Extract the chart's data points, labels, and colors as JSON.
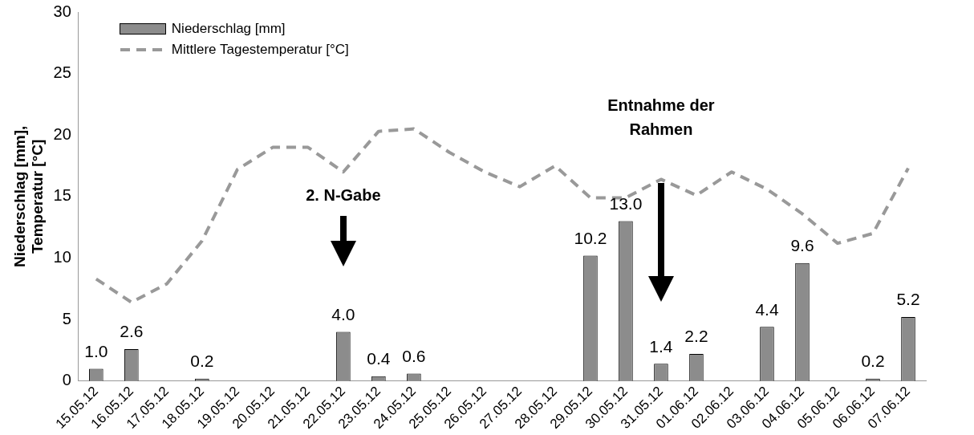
{
  "chart_data": {
    "type": "bar",
    "ylabel": "Niederschlag [mm],\nTemperatur [°C]",
    "categories": [
      "15.05.12",
      "16.05.12",
      "17.05.12",
      "18.05.12",
      "19.05.12",
      "20.05.12",
      "21.05.12",
      "22.05.12",
      "23.05.12",
      "24.05.12",
      "25.05.12",
      "26.05.12",
      "27.05.12",
      "28.05.12",
      "29.05.12",
      "30.05.12",
      "31.05.12",
      "01.06.12",
      "02.06.12",
      "03.06.12",
      "04.06.12",
      "05.06.12",
      "06.06.12",
      "07.06.12"
    ],
    "series": [
      {
        "name": "Niederschlag [mm]",
        "color": "#8c8c8c",
        "values": [
          1.0,
          2.6,
          null,
          0.2,
          null,
          null,
          null,
          4.0,
          0.4,
          0.6,
          null,
          null,
          null,
          null,
          10.2,
          13.0,
          1.4,
          2.2,
          null,
          4.4,
          9.6,
          null,
          0.2,
          5.2
        ],
        "value_labels": [
          "1.0",
          "2.6",
          null,
          "0.2",
          null,
          null,
          null,
          "4.0",
          "0.4",
          "0.6",
          null,
          null,
          null,
          null,
          "10.2",
          "13.0",
          "1.4",
          "2.2",
          null,
          "4.4",
          "9.6",
          null,
          "0.2",
          "5.2"
        ]
      },
      {
        "name": "Mittlere Tagestemperatur [°C]",
        "type": "line",
        "color": "#999999",
        "line_style": "dashed",
        "marker": "none",
        "values": [
          8.3,
          6.4,
          7.9,
          11.4,
          17.2,
          19.0,
          19.0,
          17.0,
          20.3,
          20.5,
          18.6,
          17.0,
          15.8,
          17.5,
          14.9,
          14.9,
          16.4,
          15.1,
          17.0,
          15.6,
          13.6,
          11.2,
          12.0,
          17.3
        ]
      }
    ],
    "ylim": [
      0,
      30
    ],
    "yticks": [
      0,
      5,
      10,
      15,
      20,
      25,
      30
    ],
    "grid": false,
    "legend": "top left",
    "annotations": [
      "2. N-Gabe",
      "Entnahme der\nRahmen"
    ]
  }
}
